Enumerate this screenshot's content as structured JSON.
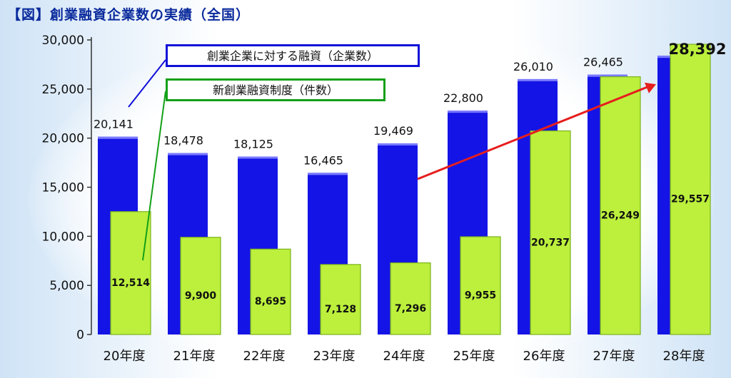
{
  "title": "【図】創業融資企業数の実績（全国）",
  "chart_data": {
    "type": "bar",
    "categories": [
      "20年度",
      "21年度",
      "22年度",
      "23年度",
      "24年度",
      "25年度",
      "26年度",
      "27年度",
      "28年度"
    ],
    "series": [
      {
        "name": "創業企業に対する融資（企業数）",
        "values": [
          20141,
          18478,
          18125,
          16465,
          19469,
          22800,
          26010,
          26465,
          28392
        ],
        "labels": [
          "20,141",
          "18,478",
          "18,125",
          "16,465",
          "19,469",
          "22,800",
          "26,010",
          "26,465",
          "28,392"
        ],
        "color": "#1414e6"
      },
      {
        "name": "新創業融資制度（件数）",
        "values": [
          12514,
          9900,
          8695,
          7128,
          7296,
          9955,
          20737,
          26249,
          29557
        ],
        "labels": [
          "12,514",
          "9,900",
          "8,695",
          "7,128",
          "7,296",
          "9,955",
          "20,737",
          "26,249",
          "29,557"
        ],
        "color": "#bcf03c"
      }
    ],
    "ylim": [
      0,
      30000
    ],
    "yticks": [
      0,
      5000,
      10000,
      15000,
      20000,
      25000,
      30000
    ],
    "ytick_labels": [
      "0",
      "5,000",
      "10,000",
      "15,000",
      "20,000",
      "25,000",
      "30,000"
    ],
    "grid": false,
    "legend": "top-left",
    "arrow": {
      "from_category": "24年度",
      "to_category": "28年度",
      "color": "#e61e1e"
    }
  }
}
